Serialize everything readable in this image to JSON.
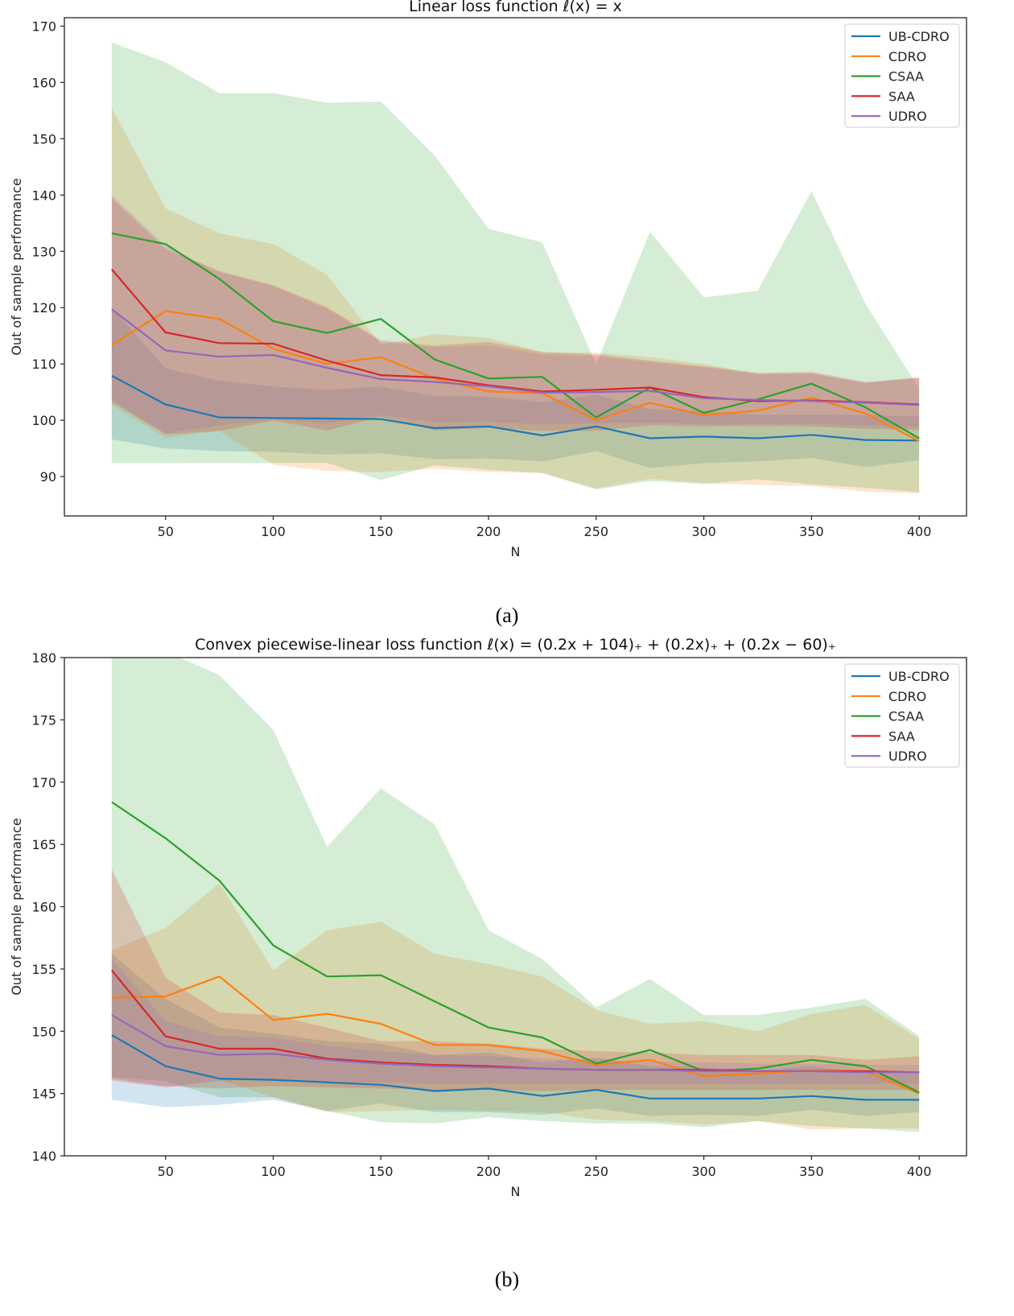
{
  "chart_data": [
    {
      "type": "line",
      "title": "Linear loss function ℓ(x) = x",
      "xlabel": "N",
      "ylabel": "Out of sample performance",
      "caption": "(a)",
      "xlim": [
        3,
        422
      ],
      "ylim": [
        83,
        171.5
      ],
      "xticks": [
        50,
        100,
        150,
        200,
        250,
        300,
        350,
        400
      ],
      "yticks": [
        90,
        100,
        110,
        120,
        130,
        140,
        150,
        160,
        170
      ],
      "grid": false,
      "legend_position": "top-right",
      "x": [
        25,
        50,
        75,
        100,
        125,
        150,
        175,
        200,
        225,
        250,
        275,
        300,
        325,
        350,
        375,
        400
      ],
      "series": [
        {
          "name": "UB-CDRO",
          "color": "#1f77b4",
          "values": [
            107.9,
            102.8,
            100.5,
            100.4,
            100.3,
            100.2,
            98.6,
            98.9,
            97.3,
            98.9,
            96.8,
            97.1,
            96.8,
            97.4,
            96.5,
            96.4
          ],
          "lower": [
            96.6,
            95.0,
            94.5,
            94.4,
            93.9,
            94.1,
            93.1,
            93.2,
            92.7,
            94.5,
            91.5,
            92.4,
            92.7,
            93.3,
            91.7,
            92.9
          ],
          "upper": [
            120.0,
            109.2,
            107.0,
            106.0,
            105.4,
            106.0,
            104.3,
            104.2,
            103.2,
            104.5,
            102.0,
            101.6,
            101.0,
            101.0,
            100.9,
            100.7
          ]
        },
        {
          "name": "CDRO",
          "color": "#ff7f0e",
          "values": [
            113.4,
            119.4,
            118.0,
            112.7,
            110.0,
            111.2,
            107.4,
            105.1,
            104.8,
            100.0,
            103.1,
            100.9,
            101.7,
            104.0,
            101.2,
            96.3
          ],
          "lower": [
            102.7,
            96.9,
            98.1,
            92.1,
            91.0,
            90.8,
            91.4,
            90.8,
            90.6,
            87.9,
            89.6,
            88.8,
            88.5,
            88.3,
            87.3,
            87.0
          ],
          "upper": [
            155.5,
            137.6,
            133.2,
            131.3,
            125.8,
            113.4,
            115.3,
            114.6,
            112.1,
            112.0,
            111.2,
            110.0,
            108.2,
            108.3,
            106.6,
            107.5
          ]
        },
        {
          "name": "CSAA",
          "color": "#2ca02c",
          "values": [
            133.2,
            131.3,
            125.1,
            117.6,
            115.5,
            118.0,
            110.8,
            107.4,
            107.7,
            100.5,
            105.8,
            101.3,
            103.7,
            106.5,
            102.3,
            96.8
          ],
          "lower": [
            92.4,
            92.4,
            92.4,
            92.4,
            92.4,
            89.4,
            92.0,
            91.2,
            90.6,
            87.7,
            89.2,
            88.7,
            89.5,
            88.6,
            88.0,
            87.2
          ],
          "upper": [
            167.1,
            163.6,
            158.1,
            158.1,
            156.4,
            156.6,
            147.0,
            134.0,
            131.6,
            109.9,
            133.5,
            121.8,
            123.0,
            140.7,
            120.7,
            105.6
          ]
        },
        {
          "name": "SAA",
          "color": "#d62728",
          "values": [
            126.8,
            115.6,
            113.7,
            113.6,
            110.6,
            108.0,
            107.6,
            106.2,
            105.1,
            105.4,
            105.8,
            104.1,
            103.4,
            103.5,
            103.2,
            102.8
          ],
          "lower": [
            103.2,
            97.5,
            98.1,
            99.9,
            98.2,
            100.6,
            98.2,
            98.6,
            98.1,
            98.1,
            99.1,
            98.9,
            99.0,
            98.9,
            98.5,
            98.3
          ],
          "upper": [
            139.5,
            130.4,
            126.5,
            124.0,
            120.1,
            114.2,
            113.3,
            113.9,
            112.1,
            111.7,
            110.6,
            109.6,
            108.4,
            108.6,
            106.8,
            107.5
          ]
        },
        {
          "name": "UDRO",
          "color": "#9467bd",
          "values": [
            119.7,
            112.4,
            111.3,
            111.6,
            109.3,
            107.3,
            106.8,
            106.0,
            104.9,
            105.0,
            105.2,
            103.9,
            103.6,
            103.4,
            103.1,
            102.7
          ],
          "lower": [
            103.6,
            97.7,
            99.1,
            100.2,
            99.4,
            100.9,
            99.6,
            99.7,
            99.3,
            99.5,
            99.6,
            99.3,
            99.4,
            99.4,
            99.0,
            98.8
          ],
          "upper": [
            140.0,
            131.0,
            126.3,
            123.8,
            119.8,
            113.9,
            113.0,
            113.3,
            111.7,
            111.4,
            110.3,
            109.4,
            108.2,
            108.3,
            106.6,
            107.7
          ]
        }
      ]
    },
    {
      "type": "line",
      "title": "Convex piecewise-linear loss function ℓ(x) = (0.2x + 104)₊ + (0.2x)₊ + (0.2x − 60)₊",
      "xlabel": "N",
      "ylabel": "Out of sample performance",
      "caption": "(b)",
      "xlim": [
        3,
        422
      ],
      "ylim": [
        140,
        180
      ],
      "xticks": [
        50,
        100,
        150,
        200,
        250,
        300,
        350,
        400
      ],
      "yticks": [
        140,
        145,
        150,
        155,
        160,
        165,
        170,
        175,
        180
      ],
      "grid": false,
      "legend_position": "top-right",
      "x": [
        25,
        50,
        75,
        100,
        125,
        150,
        175,
        200,
        225,
        250,
        275,
        300,
        325,
        350,
        375,
        400
      ],
      "series": [
        {
          "name": "UB-CDRO",
          "color": "#1f77b4",
          "values": [
            149.7,
            147.2,
            146.2,
            146.1,
            145.9,
            145.7,
            145.2,
            145.4,
            144.8,
            145.3,
            144.6,
            144.6,
            144.6,
            144.8,
            144.5,
            144.5
          ],
          "lower": [
            144.5,
            143.9,
            144.1,
            144.5,
            143.6,
            144.2,
            143.5,
            143.5,
            143.3,
            143.8,
            143.2,
            143.3,
            143.2,
            143.7,
            143.2,
            143.5
          ],
          "upper": [
            156.2,
            152.6,
            150.3,
            149.8,
            149.2,
            149.0,
            148.1,
            148.3,
            147.5,
            147.9,
            147.2,
            147.1,
            146.8,
            147.2,
            146.6,
            146.6
          ]
        },
        {
          "name": "CDRO",
          "color": "#ff7f0e",
          "values": [
            152.7,
            152.8,
            154.4,
            150.9,
            151.4,
            150.6,
            148.9,
            148.9,
            148.4,
            147.3,
            147.7,
            146.4,
            146.6,
            146.9,
            146.8,
            145.0
          ],
          "lower": [
            146.0,
            145.5,
            146.1,
            144.7,
            143.5,
            143.6,
            143.7,
            143.6,
            143.5,
            142.9,
            142.8,
            142.5,
            142.8,
            142.1,
            142.2,
            142.2
          ],
          "upper": [
            156.5,
            158.3,
            161.9,
            154.9,
            158.1,
            158.8,
            156.2,
            155.4,
            154.4,
            151.7,
            150.6,
            150.8,
            150.0,
            151.4,
            152.1,
            149.4
          ]
        },
        {
          "name": "CSAA",
          "color": "#2ca02c",
          "values": [
            168.4,
            165.5,
            162.1,
            156.9,
            154.4,
            154.5,
            152.4,
            150.3,
            149.5,
            147.4,
            148.5,
            146.8,
            147.0,
            147.7,
            147.2,
            145.1
          ],
          "lower": [
            146.3,
            146.0,
            144.7,
            144.7,
            143.6,
            142.7,
            142.6,
            143.1,
            142.8,
            142.6,
            142.6,
            142.3,
            142.8,
            142.4,
            142.2,
            141.9
          ],
          "upper": [
            180.5,
            180.5,
            178.6,
            174.2,
            164.8,
            169.5,
            166.6,
            158.1,
            155.8,
            151.9,
            154.2,
            151.3,
            151.3,
            151.9,
            152.6,
            149.6
          ]
        },
        {
          "name": "SAA",
          "color": "#d62728",
          "values": [
            154.9,
            149.6,
            148.6,
            148.6,
            147.8,
            147.5,
            147.3,
            147.2,
            147.0,
            146.9,
            146.9,
            146.9,
            146.8,
            146.8,
            146.8,
            146.7
          ],
          "lower": [
            146.2,
            145.6,
            145.4,
            145.6,
            145.5,
            145.4,
            145.3,
            145.3,
            145.2,
            145.3,
            145.3,
            145.3,
            145.3,
            145.3,
            145.3,
            145.3
          ],
          "upper": [
            163.0,
            154.3,
            151.5,
            151.3,
            150.3,
            149.2,
            149.2,
            149.0,
            148.6,
            148.4,
            148.3,
            148.1,
            148.1,
            148.1,
            147.7,
            148.0
          ]
        },
        {
          "name": "UDRO",
          "color": "#9467bd",
          "values": [
            151.3,
            148.8,
            148.1,
            148.2,
            147.7,
            147.4,
            147.2,
            147.1,
            147.0,
            146.9,
            146.9,
            146.8,
            146.8,
            146.8,
            146.7,
            146.7
          ],
          "lower": [
            146.1,
            145.5,
            146.0,
            146.2,
            145.9,
            145.9,
            145.8,
            145.8,
            145.8,
            145.8,
            145.8,
            145.8,
            145.8,
            145.8,
            145.8,
            145.8
          ],
          "upper": [
            155.8,
            150.8,
            149.6,
            149.5,
            148.8,
            148.4,
            148.1,
            148.0,
            147.8,
            147.7,
            147.6,
            147.5,
            147.4,
            147.4,
            147.3,
            147.3
          ]
        }
      ]
    }
  ]
}
